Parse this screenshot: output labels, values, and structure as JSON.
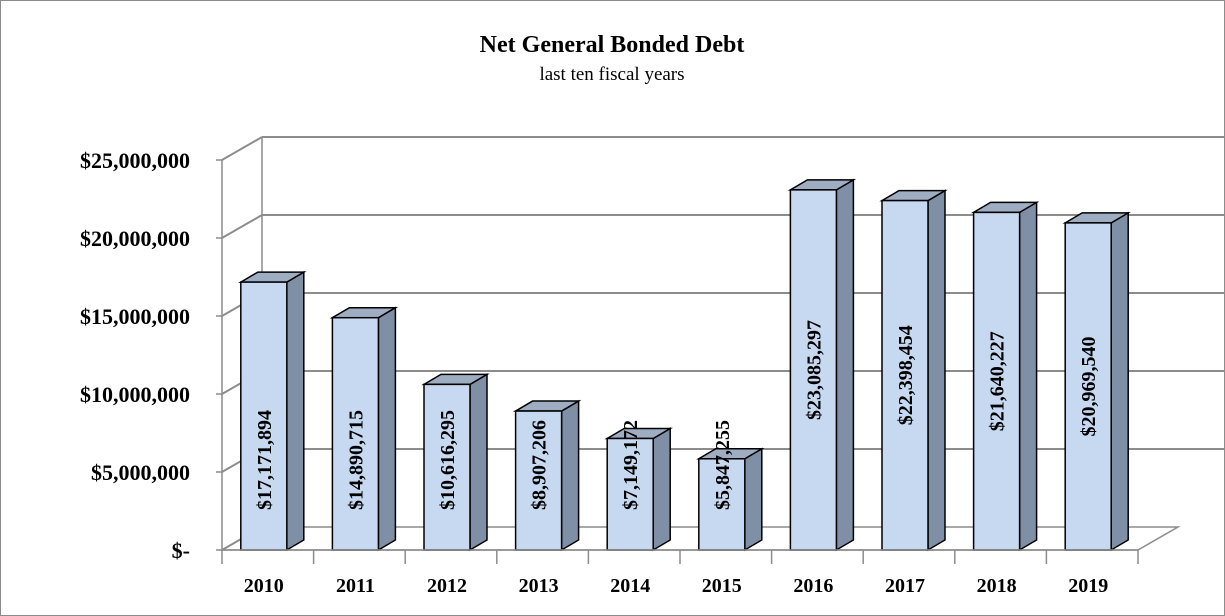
{
  "chart_data": {
    "type": "bar",
    "title": "Net General Bonded Debt",
    "subtitle": "last ten fiscal years",
    "xlabel": "",
    "ylabel": "",
    "categories": [
      "2010",
      "2011",
      "2012",
      "2013",
      "2014",
      "2015",
      "2016",
      "2017",
      "2018",
      "2019"
    ],
    "values": [
      17171894,
      14890715,
      10616295,
      8907206,
      7149172,
      5847255,
      23085297,
      22398454,
      21640227,
      20969540
    ],
    "data_labels": [
      "$17,171,894",
      "$14,890,715",
      "$10,616,295",
      "$8,907,206",
      "$7,149,172",
      "$5,847,255",
      "$23,085,297",
      "$22,398,454",
      "$21,640,227",
      "$20,969,540"
    ],
    "y_ticks": [
      0,
      5000000,
      10000000,
      15000000,
      20000000,
      25000000
    ],
    "y_tick_labels": [
      "$-",
      "$5,000,000",
      "$10,000,000",
      "$15,000,000",
      "$20,000,000",
      "$25,000,000"
    ],
    "ylim": [
      0,
      25000000
    ],
    "grid": true,
    "legend": "none",
    "style": "3d-column",
    "colors": {
      "bar_front": "#c6d9f1",
      "bar_side": "#7f8fa6",
      "bar_top": "#9eadc2",
      "bar_edge": "#000000",
      "gridline": "#8c8c8c"
    }
  }
}
